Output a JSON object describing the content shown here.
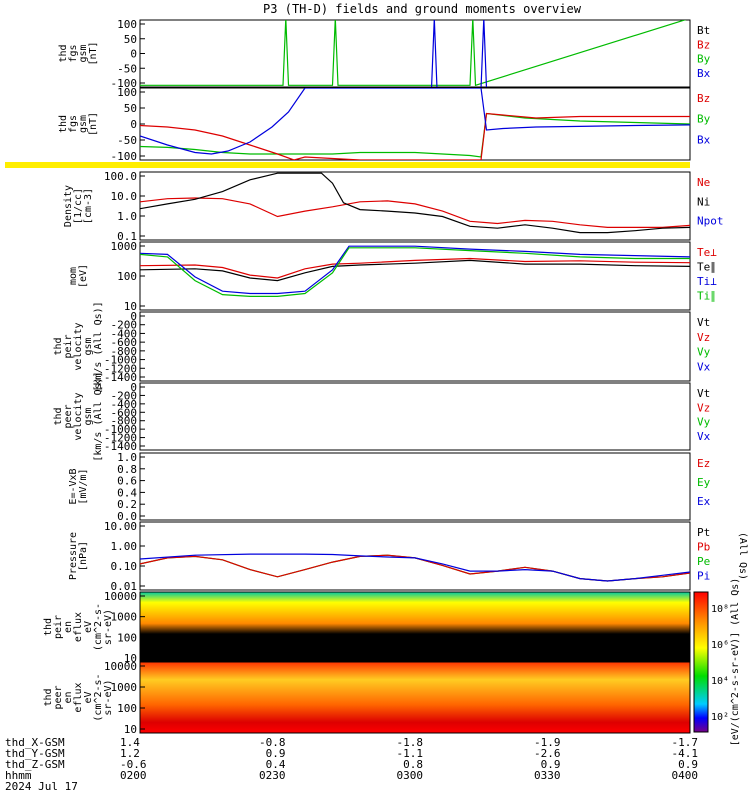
{
  "title": "P3 (TH-D) fields and ground moments overview",
  "time_axis": {
    "rows": [
      {
        "label": "thd_X-GSM",
        "values": [
          "1.4",
          "-0.8",
          "-1.8",
          "-1.9",
          "-1.7"
        ]
      },
      {
        "label": "thd_Y-GSM",
        "values": [
          "1.2",
          "0.9",
          "-1.1",
          "-2.6",
          "-4.1"
        ]
      },
      {
        "label": "thd_Z-GSM",
        "values": [
          "-0.6",
          "0.4",
          "0.8",
          "0.9",
          "0.9"
        ]
      },
      {
        "label": "hhmm",
        "values": [
          "0200",
          "0230",
          "0300",
          "0330",
          "0400"
        ]
      }
    ],
    "date": "2024 Jul 17"
  },
  "chart_data": [
    {
      "type": "line",
      "panel": "fgs-nT",
      "ylabel": [
        "thd",
        "fgs",
        "gsm",
        "[nT]"
      ],
      "yticks": [
        "100",
        "50",
        "0",
        "-50",
        "-100"
      ],
      "ylim": [
        -100,
        100
      ],
      "legend": [
        {
          "name": "Bt",
          "color": "#000000"
        },
        {
          "name": "Bz",
          "color": "#dd0000"
        },
        {
          "name": "By",
          "color": "#00bb00"
        },
        {
          "name": "Bx",
          "color": "#0000dd"
        }
      ],
      "series": [
        {
          "name": "By",
          "color": "#00bb00",
          "x": [
            0,
            0.26,
            0.265,
            0.27,
            0.35,
            0.355,
            0.36,
            0.6,
            0.605,
            0.61,
            1.0
          ],
          "y": [
            -95,
            -95,
            105,
            -95,
            -95,
            105,
            -95,
            -95,
            105,
            -95,
            105
          ]
        },
        {
          "name": "Bx",
          "color": "#0000dd",
          "x": [
            0,
            0.53,
            0.535,
            0.54,
            0.62,
            0.625,
            0.63,
            1.0
          ],
          "y": [
            -105,
            -105,
            105,
            -105,
            -105,
            105,
            -105,
            -105
          ]
        }
      ]
    },
    {
      "type": "line",
      "panel": "fgs-gsm",
      "ylabel": [
        "thd",
        "fgs",
        "gsm",
        "[nT]"
      ],
      "yticks": [
        "100",
        "50",
        "0",
        "-50",
        "-100"
      ],
      "ylim": [
        -120,
        120
      ],
      "legend": [
        {
          "name": "Bz",
          "color": "#dd0000"
        },
        {
          "name": "By",
          "color": "#00bb00"
        },
        {
          "name": "Bx",
          "color": "#0000dd"
        }
      ],
      "series": [
        {
          "name": "By",
          "color": "#00bb00",
          "x": [
            0,
            0.05,
            0.1,
            0.15,
            0.2,
            0.25,
            0.3,
            0.35,
            0.4,
            0.45,
            0.5,
            0.55,
            0.6,
            0.62,
            0.63,
            0.7,
            0.8,
            0.9,
            1.0
          ],
          "y": [
            -75,
            -78,
            -85,
            -95,
            -100,
            -100,
            -100,
            -100,
            -95,
            -95,
            -95,
            -100,
            -105,
            -110,
            35,
            20,
            10,
            5,
            0
          ]
        },
        {
          "name": "Bz",
          "color": "#dd0000",
          "x": [
            0,
            0.05,
            0.1,
            0.15,
            0.2,
            0.25,
            0.28,
            0.3,
            0.35,
            0.4,
            0.45,
            0.5,
            0.55,
            0.6,
            0.62,
            0.63,
            0.66,
            0.72,
            0.8,
            0.9,
            1.0
          ],
          "y": [
            -5,
            -10,
            -20,
            -40,
            -70,
            -100,
            -120,
            -110,
            -115,
            -120,
            -120,
            -120,
            -120,
            -120,
            -120,
            35,
            30,
            20,
            25,
            25,
            25
          ]
        },
        {
          "name": "Bx",
          "color": "#0000dd",
          "x": [
            0,
            0.05,
            0.1,
            0.13,
            0.16,
            0.2,
            0.24,
            0.27,
            0.3,
            0.35,
            0.4,
            0.45,
            0.5,
            0.55,
            0.6,
            0.62,
            0.63,
            0.66,
            0.72,
            0.8,
            0.9,
            1.0
          ],
          "y": [
            -40,
            -70,
            -95,
            -100,
            -90,
            -60,
            -10,
            40,
            120,
            120,
            120,
            120,
            120,
            120,
            120,
            120,
            -20,
            -15,
            -10,
            -8,
            -5,
            -3
          ]
        }
      ]
    },
    {
      "type": "line",
      "panel": "density",
      "ylabel": [
        "Density",
        "[1/cc]",
        "[cm-3]"
      ],
      "yticks": [
        "100.0",
        "10.0",
        "1.0",
        "0.1"
      ],
      "ylim": [
        0.05,
        150
      ],
      "scale": "log",
      "legend": [
        {
          "name": "Ne",
          "color": "#dd0000"
        },
        {
          "name": "Ni",
          "color": "#000000"
        },
        {
          "name": "Npot",
          "color": "#0000dd"
        }
      ],
      "series": [
        {
          "name": "Ne",
          "color": "#dd0000",
          "x": [
            0,
            0.05,
            0.1,
            0.15,
            0.2,
            0.25,
            0.3,
            0.35,
            0.4,
            0.45,
            0.5,
            0.55,
            0.6,
            0.65,
            0.7,
            0.75,
            0.8,
            0.85,
            0.9,
            0.95,
            1.0
          ],
          "y": [
            4.5,
            6.5,
            7,
            6.5,
            3.5,
            0.8,
            1.5,
            2.5,
            4.5,
            5,
            3.5,
            1.5,
            0.45,
            0.35,
            0.5,
            0.45,
            0.3,
            0.22,
            0.22,
            0.22,
            0.28
          ]
        },
        {
          "name": "Ni",
          "color": "#000000",
          "x": [
            0,
            0.05,
            0.1,
            0.15,
            0.2,
            0.25,
            0.3,
            0.33,
            0.35,
            0.37,
            0.4,
            0.45,
            0.5,
            0.55,
            0.6,
            0.65,
            0.7,
            0.75,
            0.8,
            0.85,
            0.9,
            0.95,
            1.0
          ],
          "y": [
            2,
            3.5,
            6,
            15,
            60,
            130,
            130,
            130,
            40,
            4,
            1.8,
            1.5,
            1.2,
            0.8,
            0.25,
            0.2,
            0.3,
            0.2,
            0.12,
            0.12,
            0.15,
            0.2,
            0.22
          ]
        }
      ]
    },
    {
      "type": "line",
      "panel": "temperature",
      "ylabel": [
        "mom",
        "[eV]"
      ],
      "yticks": [
        "1000",
        "100",
        "10"
      ],
      "ylim": [
        4,
        3000
      ],
      "scale": "log",
      "legend": [
        {
          "name": "Te⊥",
          "color": "#dd0000"
        },
        {
          "name": "Te∥",
          "color": "#000000"
        },
        {
          "name": "Ti⊥",
          "color": "#0000dd"
        },
        {
          "name": "Ti∥",
          "color": "#00bb00"
        }
      ],
      "series": [
        {
          "name": "Te⊥",
          "color": "#dd0000",
          "x": [
            0,
            0.1,
            0.15,
            0.2,
            0.25,
            0.3,
            0.35,
            0.4,
            0.5,
            0.6,
            0.7,
            0.8,
            0.9,
            1.0
          ],
          "y": [
            300,
            320,
            250,
            120,
            90,
            220,
            350,
            380,
            500,
            600,
            450,
            480,
            420,
            400
          ]
        },
        {
          "name": "Te∥",
          "color": "#000000",
          "x": [
            0,
            0.1,
            0.15,
            0.2,
            0.25,
            0.3,
            0.35,
            0.4,
            0.5,
            0.6,
            0.7,
            0.8,
            0.9,
            1.0
          ],
          "y": [
            200,
            220,
            180,
            90,
            70,
            150,
            280,
            320,
            380,
            500,
            350,
            350,
            300,
            280
          ]
        },
        {
          "name": "Ti⊥",
          "color": "#0000dd",
          "x": [
            0,
            0.05,
            0.1,
            0.15,
            0.2,
            0.25,
            0.3,
            0.35,
            0.38,
            0.4,
            0.5,
            0.6,
            0.7,
            0.8,
            0.9,
            1.0
          ],
          "y": [
            1000,
            900,
            100,
            25,
            20,
            20,
            25,
            200,
            2000,
            2000,
            2000,
            1500,
            1200,
            900,
            800,
            700
          ]
        },
        {
          "name": "Ti∥",
          "color": "#00bb00",
          "x": [
            0,
            0.05,
            0.1,
            0.15,
            0.2,
            0.25,
            0.3,
            0.35,
            0.38,
            0.4,
            0.5,
            0.6,
            0.7,
            0.8,
            0.9,
            1.0
          ],
          "y": [
            900,
            700,
            70,
            18,
            15,
            15,
            20,
            150,
            1700,
            1700,
            1700,
            1300,
            1000,
            700,
            600,
            600
          ]
        }
      ]
    },
    {
      "type": "line",
      "panel": "ion-velocity",
      "ylabel": [
        "thd",
        "peir",
        "velocity",
        "gsm",
        "[km/s (All Qs)]"
      ],
      "yticks": [
        "0",
        "-200",
        "-400",
        "-600",
        "-800",
        "-1000",
        "-1200",
        "-1400"
      ],
      "ylim": [
        -1400,
        0
      ],
      "legend": [
        {
          "name": "Vt",
          "color": "#000000"
        },
        {
          "name": "Vz",
          "color": "#dd0000"
        },
        {
          "name": "Vy",
          "color": "#00bb00"
        },
        {
          "name": "Vx",
          "color": "#0000dd"
        }
      ],
      "series": []
    },
    {
      "type": "line",
      "panel": "electron-velocity",
      "ylabel": [
        "thd",
        "peer",
        "velocity",
        "gsm",
        "[km/s (All Qs)]"
      ],
      "yticks": [
        "0",
        "-200",
        "-400",
        "-600",
        "-800",
        "-1000",
        "-1200",
        "-1400"
      ],
      "ylim": [
        -1400,
        0
      ],
      "legend": [
        {
          "name": "Vt",
          "color": "#000000"
        },
        {
          "name": "Vz",
          "color": "#dd0000"
        },
        {
          "name": "Vy",
          "color": "#00bb00"
        },
        {
          "name": "Vx",
          "color": "#0000dd"
        }
      ],
      "series": []
    },
    {
      "type": "line",
      "panel": "efield",
      "ylabel": [
        "E=-VxB",
        "[mV/m]"
      ],
      "yticks": [
        "1.0",
        "0.8",
        "0.6",
        "0.4",
        "0.2",
        "0.0"
      ],
      "ylim": [
        0,
        1
      ],
      "legend": [
        {
          "name": "Ez",
          "color": "#dd0000"
        },
        {
          "name": "Ey",
          "color": "#00bb00"
        },
        {
          "name": "Ex",
          "color": "#0000dd"
        }
      ],
      "series": []
    },
    {
      "type": "line",
      "panel": "pressure",
      "ylabel": [
        "Pressure",
        "[nPa]"
      ],
      "right_label": "(All Qs)",
      "yticks": [
        "10.00",
        "1.00",
        "0.10",
        "0.01"
      ],
      "ylim": [
        0.005,
        20
      ],
      "scale": "log",
      "legend": [
        {
          "name": "Pt",
          "color": "#000000"
        },
        {
          "name": "Pb",
          "color": "#dd0000"
        },
        {
          "name": "Pe",
          "color": "#00bb00"
        },
        {
          "name": "Pi",
          "color": "#0000dd"
        }
      ],
      "series": [
        {
          "name": "Pe",
          "color": "#00bb00",
          "x": [
            0,
            0.05,
            0.1,
            0.15,
            0.2,
            0.25,
            0.3,
            0.35,
            0.4,
            0.45,
            0.5,
            0.55,
            0.6,
            0.65,
            0.7,
            0.75,
            0.8,
            0.85,
            0.9,
            0.95,
            1.0
          ],
          "y": [
            0.12,
            0.25,
            0.3,
            0.2,
            0.06,
            0.025,
            0.06,
            0.15,
            0.3,
            0.35,
            0.25,
            0.1,
            0.035,
            0.05,
            0.08,
            0.05,
            0.02,
            0.015,
            0.02,
            0.025,
            0.04
          ]
        },
        {
          "name": "Pb",
          "color": "#dd0000",
          "x": [
            0,
            0.05,
            0.1,
            0.15,
            0.2,
            0.25,
            0.3,
            0.35,
            0.4,
            0.45,
            0.5,
            0.55,
            0.6,
            0.65,
            0.7,
            0.75,
            0.8,
            0.85,
            0.9,
            0.95,
            1.0
          ],
          "y": [
            0.12,
            0.25,
            0.3,
            0.2,
            0.06,
            0.025,
            0.06,
            0.15,
            0.3,
            0.35,
            0.25,
            0.1,
            0.035,
            0.05,
            0.08,
            0.05,
            0.02,
            0.015,
            0.02,
            0.025,
            0.04
          ]
        },
        {
          "name": "Pi",
          "color": "#0000dd",
          "x": [
            0,
            0.1,
            0.2,
            0.3,
            0.35,
            0.4,
            0.45,
            0.5,
            0.55,
            0.6,
            0.65,
            0.7,
            0.75,
            0.8,
            0.85,
            0.9,
            0.95,
            1.0
          ],
          "y": [
            0.22,
            0.35,
            0.4,
            0.4,
            0.38,
            0.32,
            0.28,
            0.25,
            0.12,
            0.05,
            0.05,
            0.06,
            0.05,
            0.02,
            0.015,
            0.02,
            0.03,
            0.045
          ]
        }
      ]
    },
    {
      "type": "heatmap",
      "panel": "ion-eflux",
      "ylabel": [
        "thd",
        "peir",
        "en",
        "eflux",
        "eV",
        "(cm^2-s-",
        "sr-eV)"
      ],
      "yticks": [
        "10000",
        "1000",
        "100",
        "10"
      ],
      "scale": "log"
    },
    {
      "type": "heatmap",
      "panel": "electron-eflux",
      "ylabel": [
        "thd",
        "peer",
        "en",
        "eflux",
        "eV",
        "(cm^2-s-",
        "sr-eV)"
      ],
      "yticks": [
        "10000",
        "1000",
        "100",
        "10"
      ],
      "scale": "log"
    }
  ],
  "colorbar": {
    "ticks": [
      "10⁸",
      "10⁶",
      "10⁴",
      "10²"
    ],
    "label": "[eV/(cm^2-s-sr-eV)] (All Qs)"
  }
}
